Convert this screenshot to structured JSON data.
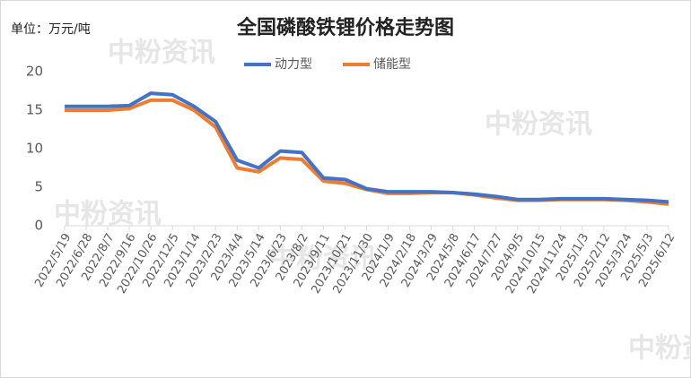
{
  "chart_data": {
    "type": "line",
    "title": "全国磷酸铁锂价格走势图",
    "unit_label": "单位：万元/吨",
    "watermark": "中粉资讯",
    "categories": [
      "2022/5/19",
      "2022/6/28",
      "2022/8/7",
      "2022/9/16",
      "2022/10/26",
      "2022/12/5",
      "2023/1/14",
      "2023/2/23",
      "2023/4/4",
      "2023/5/14",
      "2023/6/23",
      "2023/8/2",
      "2023/9/11",
      "2023/10/21",
      "2023/11/30",
      "2024/1/9",
      "2024/2/18",
      "2024/3/29",
      "2024/5/8",
      "2024/6/17",
      "2024/7/27",
      "2024/9/5",
      "2024/10/15",
      "2024/11/24",
      "2025/1/3",
      "2025/2/12",
      "2025/3/24",
      "2025/5/3",
      "2025/6/12"
    ],
    "series": [
      {
        "name": "动力型",
        "color": "#4472c4",
        "values": [
          15.5,
          15.5,
          15.5,
          15.6,
          17.2,
          17.0,
          15.5,
          13.5,
          8.5,
          7.5,
          9.7,
          9.5,
          6.2,
          6.0,
          4.8,
          4.4,
          4.4,
          4.4,
          4.3,
          4.1,
          3.8,
          3.4,
          3.4,
          3.5,
          3.5,
          3.5,
          3.4,
          3.3,
          3.1
        ]
      },
      {
        "name": "储能型",
        "color": "#ed7d31",
        "values": [
          15.0,
          15.0,
          15.0,
          15.2,
          16.3,
          16.3,
          15.0,
          12.8,
          7.5,
          7.0,
          8.8,
          8.6,
          5.8,
          5.5,
          4.7,
          4.2,
          4.2,
          4.3,
          4.3,
          4.0,
          3.6,
          3.3,
          3.3,
          3.4,
          3.4,
          3.4,
          3.3,
          3.1,
          2.8
        ]
      }
    ],
    "ylim": [
      0,
      20
    ],
    "yticks": [
      0,
      5,
      10,
      15,
      20
    ],
    "grid": false,
    "legend": "top"
  }
}
